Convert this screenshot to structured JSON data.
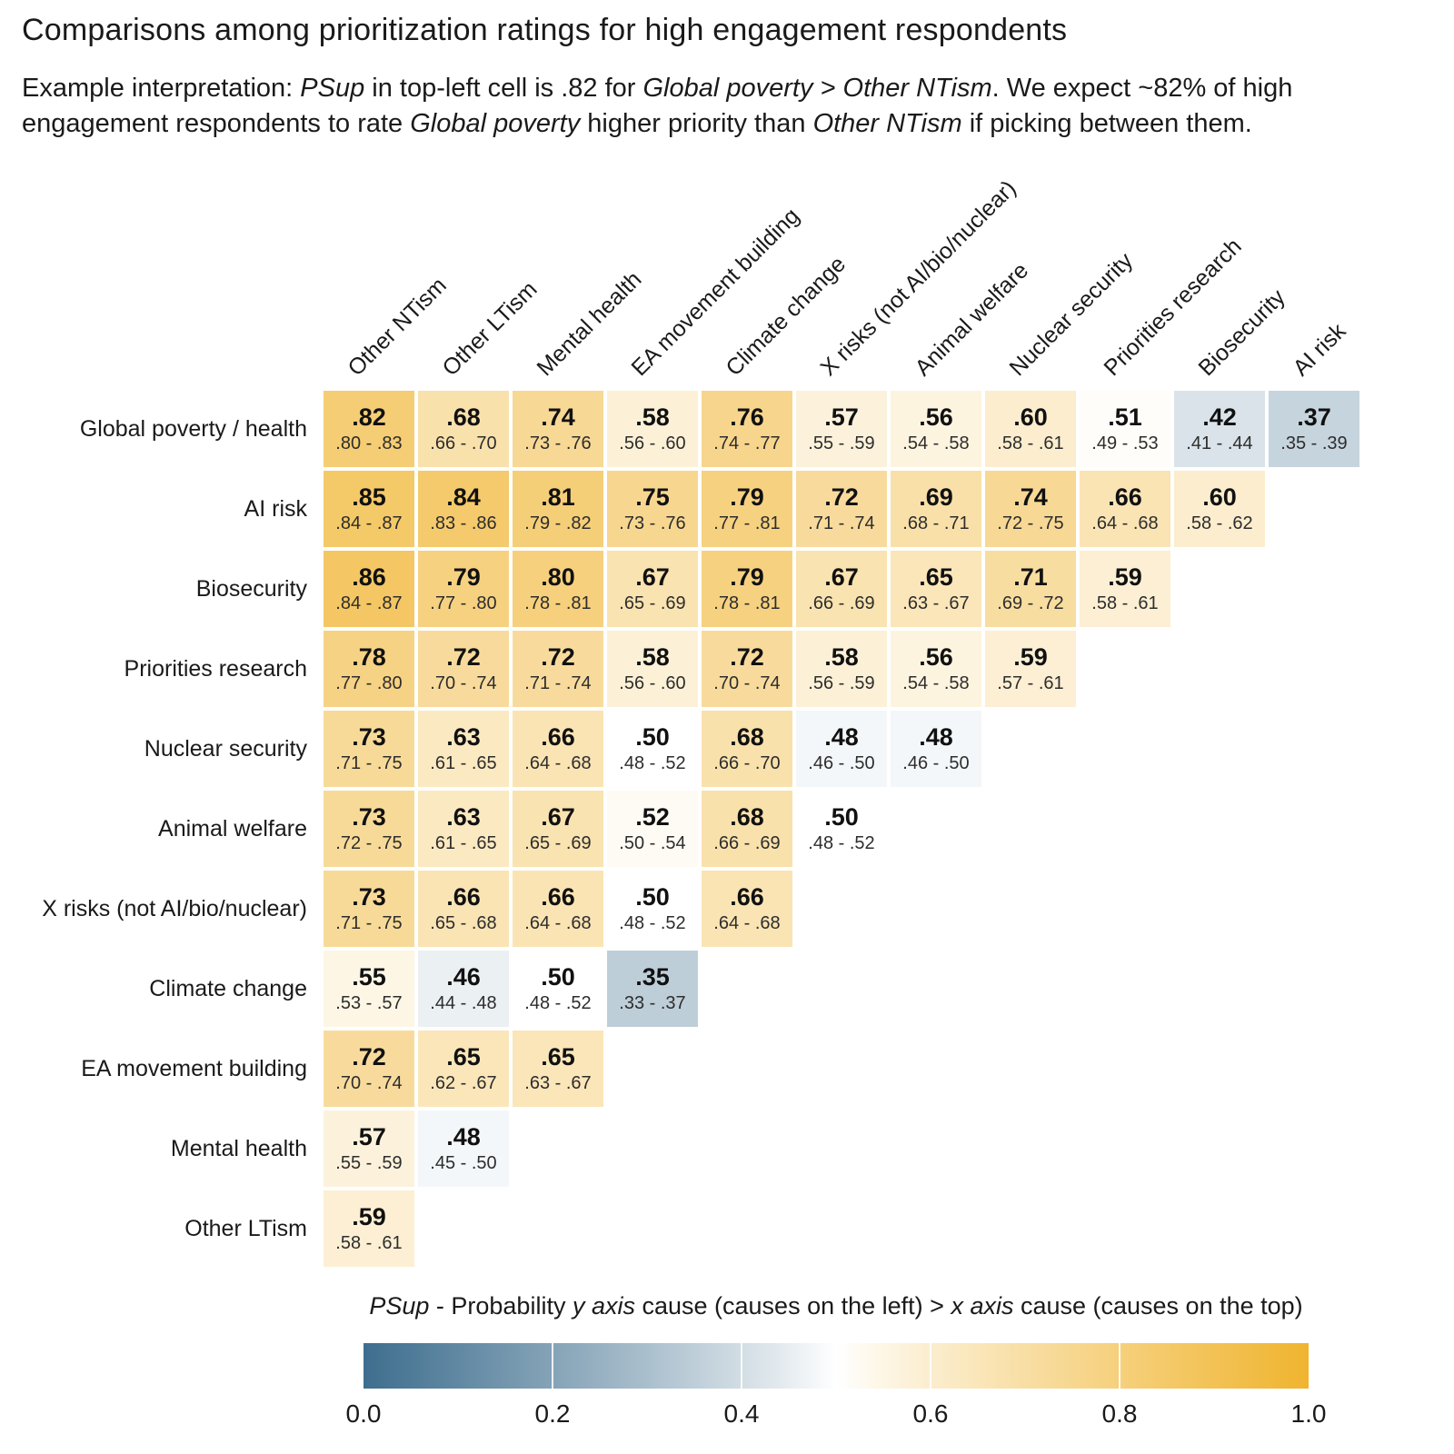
{
  "title": "Comparisons among prioritization ratings for high engagement respondents",
  "subtitle": {
    "segments": [
      {
        "text": "Example interpretation: ",
        "italic": false
      },
      {
        "text": "PSup",
        "italic": true
      },
      {
        "text": " in top-left cell is .82 for ",
        "italic": false
      },
      {
        "text": "Global poverty > Other NTism",
        "italic": true
      },
      {
        "text": ". We expect ~82% of high engagement respondents to rate ",
        "italic": false
      },
      {
        "text": "Global poverty",
        "italic": true
      },
      {
        "text": " higher priority than ",
        "italic": false
      },
      {
        "text": "Other NTism",
        "italic": true
      },
      {
        "text": " if picking between them.",
        "italic": false
      }
    ]
  },
  "chart_data": {
    "type": "heatmap",
    "value_label": "PSup",
    "x_categories": [
      "Other NTism",
      "Other LTism",
      "Mental health",
      "EA movement building",
      "Climate change",
      "X risks (not AI/bio/nuclear)",
      "Animal welfare",
      "Nuclear security",
      "Priorities research",
      "Biosecurity",
      "AI risk"
    ],
    "y_categories": [
      "Global poverty / health",
      "AI risk",
      "Biosecurity",
      "Priorities research",
      "Nuclear security",
      "Animal welfare",
      "X risks (not AI/bio/nuclear)",
      "Climate change",
      "EA movement building",
      "Mental health",
      "Other LTism"
    ],
    "rows": [
      {
        "label": "Global poverty / health",
        "cells": [
          {
            "psup": ".82",
            "ci": ".80 - .83"
          },
          {
            "psup": ".68",
            "ci": ".66 - .70"
          },
          {
            "psup": ".74",
            "ci": ".73 - .76"
          },
          {
            "psup": ".58",
            "ci": ".56 - .60"
          },
          {
            "psup": ".76",
            "ci": ".74 - .77"
          },
          {
            "psup": ".57",
            "ci": ".55 - .59"
          },
          {
            "psup": ".56",
            "ci": ".54 - .58"
          },
          {
            "psup": ".60",
            "ci": ".58 - .61"
          },
          {
            "psup": ".51",
            "ci": ".49 - .53"
          },
          {
            "psup": ".42",
            "ci": ".41 - .44"
          },
          {
            "psup": ".37",
            "ci": ".35 - .39"
          }
        ]
      },
      {
        "label": "AI risk",
        "cells": [
          {
            "psup": ".85",
            "ci": ".84 - .87"
          },
          {
            "psup": ".84",
            "ci": ".83 - .86"
          },
          {
            "psup": ".81",
            "ci": ".79 - .82"
          },
          {
            "psup": ".75",
            "ci": ".73 - .76"
          },
          {
            "psup": ".79",
            "ci": ".77 - .81"
          },
          {
            "psup": ".72",
            "ci": ".71 - .74"
          },
          {
            "psup": ".69",
            "ci": ".68 - .71"
          },
          {
            "psup": ".74",
            "ci": ".72 - .75"
          },
          {
            "psup": ".66",
            "ci": ".64 - .68"
          },
          {
            "psup": ".60",
            "ci": ".58 - .62"
          }
        ]
      },
      {
        "label": "Biosecurity",
        "cells": [
          {
            "psup": ".86",
            "ci": ".84 - .87"
          },
          {
            "psup": ".79",
            "ci": ".77 - .80"
          },
          {
            "psup": ".80",
            "ci": ".78 - .81"
          },
          {
            "psup": ".67",
            "ci": ".65 - .69"
          },
          {
            "psup": ".79",
            "ci": ".78 - .81"
          },
          {
            "psup": ".67",
            "ci": ".66 - .69"
          },
          {
            "psup": ".65",
            "ci": ".63 - .67"
          },
          {
            "psup": ".71",
            "ci": ".69 - .72"
          },
          {
            "psup": ".59",
            "ci": ".58 - .61"
          }
        ]
      },
      {
        "label": "Priorities research",
        "cells": [
          {
            "psup": ".78",
            "ci": ".77 - .80"
          },
          {
            "psup": ".72",
            "ci": ".70 - .74"
          },
          {
            "psup": ".72",
            "ci": ".71 - .74"
          },
          {
            "psup": ".58",
            "ci": ".56 - .60"
          },
          {
            "psup": ".72",
            "ci": ".70 - .74"
          },
          {
            "psup": ".58",
            "ci": ".56 - .59"
          },
          {
            "psup": ".56",
            "ci": ".54 - .58"
          },
          {
            "psup": ".59",
            "ci": ".57 - .61"
          }
        ]
      },
      {
        "label": "Nuclear security",
        "cells": [
          {
            "psup": ".73",
            "ci": ".71 - .75"
          },
          {
            "psup": ".63",
            "ci": ".61 - .65"
          },
          {
            "psup": ".66",
            "ci": ".64 - .68"
          },
          {
            "psup": ".50",
            "ci": ".48 - .52"
          },
          {
            "psup": ".68",
            "ci": ".66 - .70"
          },
          {
            "psup": ".48",
            "ci": ".46 - .50"
          },
          {
            "psup": ".48",
            "ci": ".46 - .50"
          }
        ]
      },
      {
        "label": "Animal welfare",
        "cells": [
          {
            "psup": ".73",
            "ci": ".72 - .75"
          },
          {
            "psup": ".63",
            "ci": ".61 - .65"
          },
          {
            "psup": ".67",
            "ci": ".65 - .69"
          },
          {
            "psup": ".52",
            "ci": ".50 - .54"
          },
          {
            "psup": ".68",
            "ci": ".66 - .69"
          },
          {
            "psup": ".50",
            "ci": ".48 - .52"
          }
        ]
      },
      {
        "label": "X risks (not AI/bio/nuclear)",
        "cells": [
          {
            "psup": ".73",
            "ci": ".71 - .75"
          },
          {
            "psup": ".66",
            "ci": ".65 - .68"
          },
          {
            "psup": ".66",
            "ci": ".64 - .68"
          },
          {
            "psup": ".50",
            "ci": ".48 - .52"
          },
          {
            "psup": ".66",
            "ci": ".64 - .68"
          }
        ]
      },
      {
        "label": "Climate change",
        "cells": [
          {
            "psup": ".55",
            "ci": ".53 - .57"
          },
          {
            "psup": ".46",
            "ci": ".44 - .48"
          },
          {
            "psup": ".50",
            "ci": ".48 - .52"
          },
          {
            "psup": ".35",
            "ci": ".33 - .37"
          }
        ]
      },
      {
        "label": "EA movement building",
        "cells": [
          {
            "psup": ".72",
            "ci": ".70 - .74"
          },
          {
            "psup": ".65",
            "ci": ".62 - .67"
          },
          {
            "psup": ".65",
            "ci": ".63 - .67"
          }
        ]
      },
      {
        "label": "Mental health",
        "cells": [
          {
            "psup": ".57",
            "ci": ".55 - .59"
          },
          {
            "psup": ".48",
            "ci": ".45 - .50"
          }
        ]
      },
      {
        "label": "Other LTism",
        "cells": [
          {
            "psup": ".59",
            "ci": ".58 - .61"
          }
        ]
      }
    ],
    "colorscale": {
      "low": "#3e6e8e",
      "mid": "#ffffff",
      "high": "#f0b42f",
      "domain": [
        0,
        1
      ],
      "midpoint": 0.5
    },
    "legend": {
      "title_segments": [
        {
          "text": "PSup",
          "italic": true
        },
        {
          "text": " - Probability ",
          "italic": false
        },
        {
          "text": "y axis",
          "italic": true
        },
        {
          "text": " cause (causes on the left) > ",
          "italic": false
        },
        {
          "text": "x axis",
          "italic": true
        },
        {
          "text": " cause (causes on the top)",
          "italic": false
        }
      ],
      "ticks": [
        "0.0",
        "0.2",
        "0.4",
        "0.6",
        "0.8",
        "1.0"
      ]
    }
  }
}
